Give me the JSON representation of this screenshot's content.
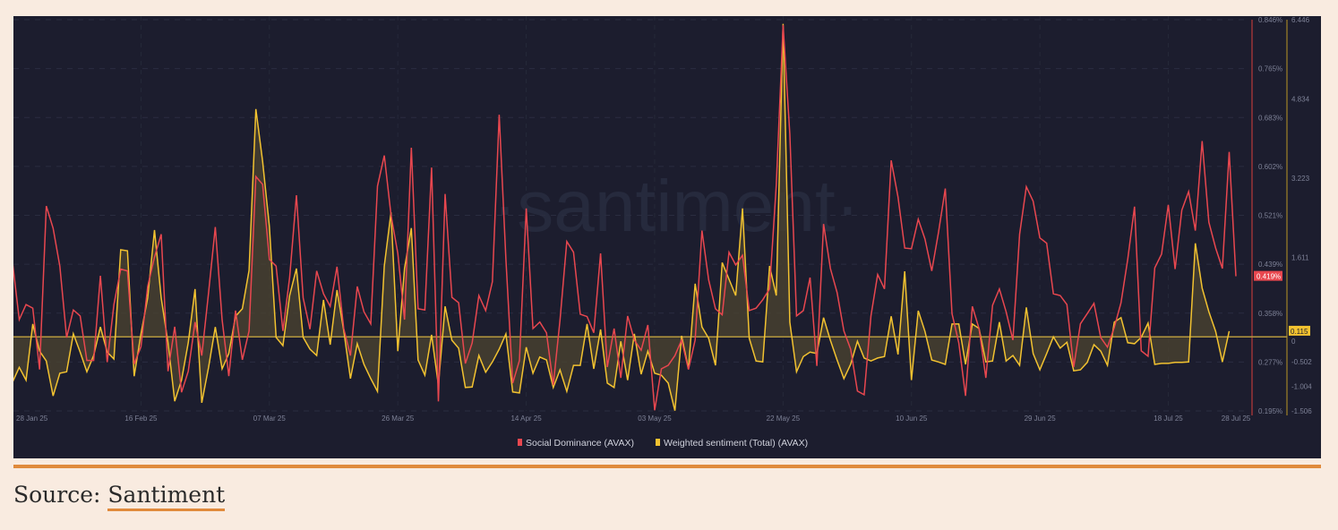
{
  "chart_data": {
    "type": "line",
    "watermark": "·santiment·",
    "start_date": "28 Jan 25",
    "interval": "1 day",
    "x_ticks": [
      "28 Jan 25",
      "16 Feb 25",
      "07 Mar 25",
      "26 Mar 25",
      "14 Apr 25",
      "03 May 25",
      "22 May 25",
      "10 Jun 25",
      "29 Jun 25",
      "18 Jul 25",
      "28 Jul 25"
    ],
    "x_tick_days": [
      0,
      19,
      38,
      57,
      76,
      95,
      114,
      133,
      152,
      171,
      181
    ],
    "left_axis": {
      "name": "Social Dominance (AVAX)",
      "ticks": [
        "0.846%",
        "0.765%",
        "0.683%",
        "0.602%",
        "0.521%",
        "0.439%",
        "0.358%",
        "0.277%",
        "0.195%"
      ],
      "range": [
        0.195,
        0.846
      ],
      "current_label": "0.419%",
      "current": 0.419
    },
    "right_axis": {
      "name": "Weighted sentiment (Total) (AVAX)",
      "ticks": [
        {
          "v": 6.446,
          "t": "6.446"
        },
        {
          "v": 4.834,
          "t": "4.834"
        },
        {
          "v": 3.223,
          "t": "3.223"
        },
        {
          "v": 1.611,
          "t": "1.611"
        },
        {
          "v": 0,
          "t": "0"
        },
        {
          "v": -0.502,
          "t": "-0.502"
        },
        {
          "v": -1.004,
          "t": "-1.004"
        },
        {
          "v": -1.506,
          "t": "-1.506"
        }
      ],
      "range": [
        -1.506,
        6.446
      ],
      "current_label": "0.115",
      "current": 0.115
    },
    "series": [
      {
        "name": "Social Dominance (AVAX)",
        "color": "#e8474f",
        "axis": "left",
        "values": [
          0.442,
          0.347,
          0.372,
          0.366,
          0.264,
          0.536,
          0.499,
          0.436,
          0.317,
          0.363,
          0.353,
          0.279,
          0.279,
          0.42,
          0.276,
          0.372,
          0.431,
          0.428,
          0.273,
          0.302,
          0.402,
          0.451,
          0.489,
          0.261,
          0.335,
          0.226,
          0.261,
          0.343,
          0.287,
          0.392,
          0.501,
          0.347,
          0.253,
          0.362,
          0.28,
          0.328,
          0.585,
          0.572,
          0.447,
          0.436,
          0.328,
          0.417,
          0.554,
          0.383,
          0.331,
          0.428,
          0.39,
          0.369,
          0.435,
          0.332,
          0.287,
          0.402,
          0.36,
          0.34,
          0.569,
          0.62,
          0.521,
          0.457,
          0.347,
          0.633,
          0.365,
          0.363,
          0.6,
          0.211,
          0.556,
          0.384,
          0.375,
          0.274,
          0.308,
          0.387,
          0.362,
          0.41,
          0.688,
          0.447,
          0.241,
          0.279,
          0.532,
          0.332,
          0.343,
          0.325,
          0.238,
          0.346,
          0.477,
          0.459,
          0.356,
          0.352,
          0.325,
          0.457,
          0.268,
          0.332,
          0.25,
          0.353,
          0.313,
          0.296,
          0.338,
          0.196,
          0.265,
          0.271,
          0.287,
          0.313,
          0.264,
          0.313,
          0.495,
          0.413,
          0.365,
          0.355,
          0.459,
          0.438,
          0.454,
          0.362,
          0.366,
          0.38,
          0.398,
          0.571,
          0.837,
          0.656,
          0.353,
          0.362,
          0.417,
          0.27,
          0.506,
          0.432,
          0.392,
          0.328,
          0.298,
          0.228,
          0.222,
          0.353,
          0.422,
          0.398,
          0.612,
          0.551,
          0.466,
          0.465,
          0.514,
          0.481,
          0.428,
          0.492,
          0.565,
          0.357,
          0.308,
          0.22,
          0.369,
          0.332,
          0.25,
          0.371,
          0.398,
          0.36,
          0.313,
          0.489,
          0.568,
          0.544,
          0.483,
          0.474,
          0.39,
          0.387,
          0.372,
          0.268,
          0.34,
          0.357,
          0.374,
          0.317,
          0.301,
          0.334,
          0.375,
          0.447,
          0.535,
          0.295,
          0.286,
          0.433,
          0.456,
          0.538,
          0.431,
          0.529,
          0.56,
          0.495,
          0.644,
          0.509,
          0.466,
          0.432,
          0.626,
          0.419
        ]
      },
      {
        "name": "Weighted sentiment (Total) (AVAX)",
        "color": "#f2c230",
        "axis": "right",
        "values": [
          -0.92,
          -0.62,
          -0.88,
          0.26,
          -0.29,
          -0.49,
          -1.2,
          -0.74,
          -0.71,
          0.06,
          -0.31,
          -0.71,
          -0.38,
          0.2,
          -0.31,
          -0.45,
          1.77,
          1.75,
          -0.8,
          0.06,
          0.79,
          2.17,
          0.79,
          -0.12,
          -1.31,
          -0.88,
          -0.12,
          0.97,
          -1.34,
          -0.62,
          0.2,
          -0.65,
          -0.34,
          0.42,
          0.57,
          1.35,
          4.63,
          3.57,
          2.24,
          -0.01,
          -0.18,
          0.84,
          1.39,
          -0.01,
          -0.25,
          -0.38,
          0.75,
          -0.16,
          0.95,
          0.13,
          -0.85,
          -0.14,
          -0.56,
          -0.85,
          -1.11,
          1.44,
          2.53,
          -0.29,
          1.39,
          2.21,
          -0.47,
          -0.78,
          0.04,
          -0.98,
          0.62,
          -0.07,
          -0.23,
          -1.03,
          -1.02,
          -0.38,
          -0.72,
          -0.51,
          -0.25,
          0.06,
          -1.12,
          -1.14,
          -0.21,
          -0.74,
          -0.41,
          -0.47,
          -1.03,
          -0.67,
          -1.11,
          -0.58,
          -0.58,
          0.26,
          -0.65,
          0.15,
          -0.94,
          -1.03,
          -0.09,
          -0.88,
          0.06,
          -0.76,
          -0.29,
          -0.74,
          -0.78,
          -0.94,
          -1.5,
          0.02,
          -0.65,
          1.08,
          0.2,
          -0.03,
          -0.58,
          1.51,
          1.17,
          0.84,
          2.61,
          -0.03,
          -0.49,
          -0.51,
          1.44,
          0.84,
          6.36,
          0.3,
          -0.71,
          -0.4,
          -0.31,
          -0.34,
          0.39,
          -0.07,
          -0.47,
          -0.85,
          -0.56,
          -0.09,
          -0.43,
          -0.49,
          -0.43,
          -0.4,
          0.42,
          -0.36,
          1.33,
          -0.88,
          0.53,
          0.11,
          -0.47,
          -0.51,
          -0.56,
          0.26,
          0.26,
          -0.56,
          0.26,
          0.17,
          -0.51,
          -0.49,
          0.3,
          -0.49,
          -0.38,
          -0.58,
          0.6,
          -0.34,
          -0.67,
          -0.34,
          0.0,
          -0.23,
          -0.11,
          -0.69,
          -0.67,
          -0.52,
          -0.16,
          -0.29,
          -0.58,
          0.3,
          0.39,
          -0.12,
          -0.14,
          -0.01,
          0.28,
          -0.56,
          -0.54,
          -0.54,
          -0.52,
          -0.52,
          -0.51,
          1.9,
          0.99,
          0.51,
          0.11,
          -0.51,
          0.115
        ]
      }
    ],
    "legend_position": "bottom-center",
    "grid": true
  },
  "footer": {
    "source_prefix": "Source: ",
    "source_link": "Santiment"
  }
}
